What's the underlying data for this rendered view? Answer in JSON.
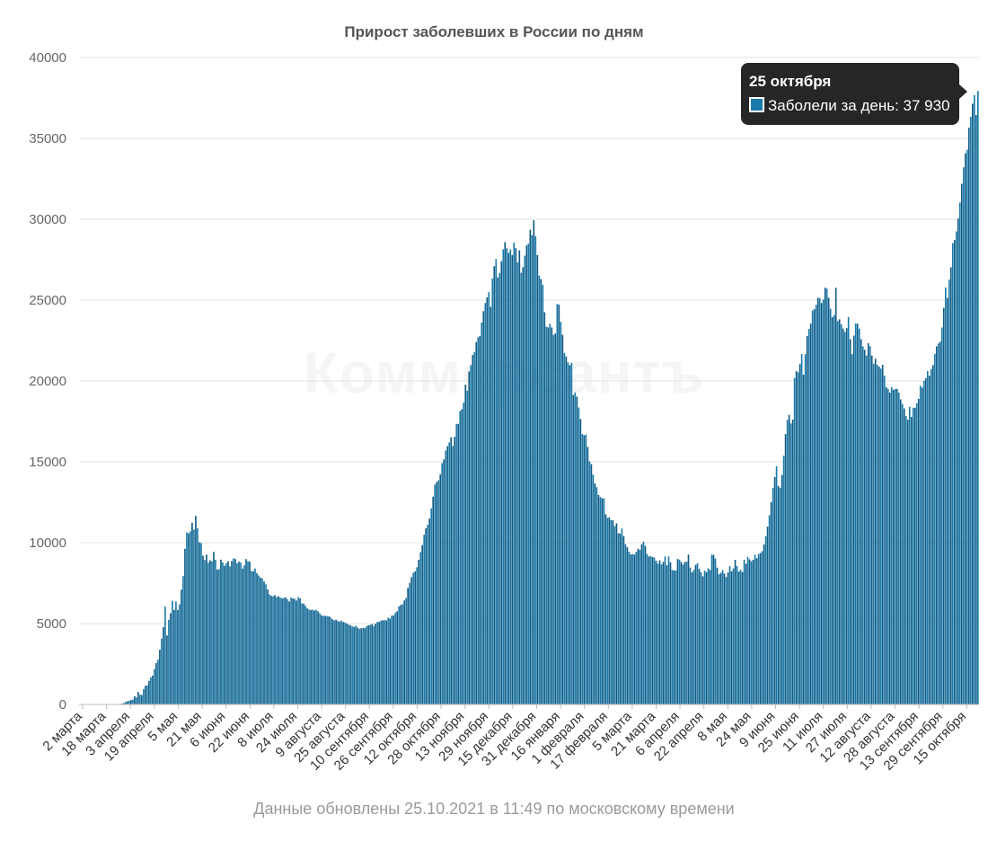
{
  "footer": "Данные обновлены 25.10.2021 в 11:49 по московскому времени",
  "watermark": "Коммерсантъ",
  "tooltip": {
    "date": "25 октября",
    "series_label": "Заболели за день: 37 930"
  },
  "colors": {
    "bar": "#1a7aab",
    "bar_edge": "#0f5a82",
    "grid": "#e3e3e3"
  },
  "chart_data": {
    "type": "bar",
    "title": "Прирост заболевших в России по дням",
    "xlabel": "",
    "ylabel": "",
    "ylim": [
      0,
      40000
    ],
    "yticks": [
      0,
      5000,
      10000,
      15000,
      20000,
      25000,
      30000,
      35000,
      40000
    ],
    "grid": true,
    "legend": "none",
    "x_start": "2020-03-02",
    "x_end": "2021-10-25",
    "x_tick_labels": [
      "2 марта",
      "18 марта",
      "3 апреля",
      "19 апреля",
      "5 мая",
      "21 мая",
      "6 июня",
      "22 июня",
      "8 июля",
      "24 июля",
      "9 августа",
      "25 августа",
      "10 сентября",
      "26 сентября",
      "12 октября",
      "28 октября",
      "13 ноября",
      "29 ноября",
      "15 декабря",
      "31 декабря",
      "16 января",
      "1 февраля",
      "17 февраля",
      "5 марта",
      "21 марта",
      "6 апреля",
      "22 апреля",
      "8 мая",
      "24 мая",
      "9 июня",
      "25 июня",
      "11 июля",
      "27 июля",
      "12 августа",
      "28 августа",
      "13 сентября",
      "29 сентября",
      "15 октября"
    ],
    "series": [
      {
        "values": [
          0,
          0,
          0,
          0,
          0,
          0,
          0,
          0,
          0,
          0,
          0,
          0,
          0,
          0,
          0,
          0,
          0,
          0,
          0,
          0,
          0,
          0,
          22,
          58,
          79,
          158,
          196,
          229,
          270,
          302,
          501,
          440,
          771,
          601,
          582,
          954,
          1154,
          1175,
          1459,
          1667,
          1786,
          2186,
          2558,
          2774,
          3388,
          4070,
          4785,
          6060,
          4268,
          5236,
          5642,
          6411,
          5849,
          6361,
          5841,
          6198,
          7099,
          7933,
          9623,
          10633,
          10581,
          10699,
          11231,
          10817,
          11656,
          10899,
          10028,
          9974,
          9200,
          8926,
          9263,
          8764,
          8915,
          8849,
          9434,
          8946,
          8338,
          8371,
          8952,
          8779,
          8572,
          8726,
          8855,
          8536,
          8863,
          9035,
          8985,
          8726,
          8831,
          8779,
          8404,
          8595,
          8987,
          8858,
          8835,
          8248,
          8246,
          8404,
          8110,
          7972,
          7843,
          7790,
          7600,
          7425,
          7113,
          6800,
          6719,
          6693,
          6760,
          6632,
          6693,
          6611,
          6562,
          6595,
          6615,
          6509,
          6368,
          6611,
          6556,
          6537,
          6428,
          6635,
          6562,
          6248,
          6234,
          6109,
          5940,
          5871,
          5842,
          5862,
          5811,
          5848,
          5759,
          5635,
          5509,
          5475,
          5482,
          5462,
          5448,
          5395,
          5267,
          5204,
          5241,
          5159,
          5118,
          5189,
          5102,
          5065,
          5010,
          4945,
          4892,
          4828,
          4785,
          4870,
          4748,
          4676,
          4711,
          4733,
          4712,
          4829,
          4892,
          4921,
          4969,
          4852,
          4995,
          5110,
          5099,
          5185,
          5196,
          5218,
          5195,
          5363,
          5310,
          5488,
          5509,
          5670,
          5762,
          6065,
          6148,
          6196,
          6431,
          6595,
          7212,
          7523,
          7867,
          8135,
          8232,
          8481,
          8945,
          9412,
          9859,
          10499,
          10888,
          11115,
          11493,
          12126,
          12846,
          13592,
          13754,
          13868,
          14231,
          14922,
          15150,
          15700,
          15971,
          16202,
          16521,
          15982,
          16550,
          17340,
          17347,
          18140,
          18257,
          18665,
          19768,
          19404,
          20582,
          20977,
          21608,
          21798,
          22410,
          22702,
          22778,
          23610,
          24318,
          24822,
          25173,
          25487,
          24581,
          26338,
          27100,
          27543,
          26402,
          26683,
          27403,
          28145,
          28585,
          28209,
          27927,
          28137,
          27787,
          28552,
          28214,
          27328,
          28080,
          26689,
          27039,
          27747,
          28381,
          28486,
          29350,
          29018,
          29935,
          28948,
          27787,
          26513,
          26301,
          25948,
          24246,
          23351,
          23315,
          23541,
          23309,
          22850,
          22934,
          24763,
          24715,
          23652,
          22857,
          21734,
          21513,
          21152,
          20985,
          21127,
          19138,
          19290,
          19032,
          18359,
          17648,
          16714,
          16643,
          16688,
          15916,
          15038,
          14861,
          14207,
          13663,
          13433,
          12953,
          12828,
          12742,
          12742,
          11751,
          11534,
          11571,
          11398,
          11385,
          11024,
          11198,
          10595,
          10565,
          10880,
          10410,
          9908,
          9724,
          9437,
          9284,
          9299,
          9270,
          9445,
          9632,
          9558,
          9908,
          10065,
          9803,
          9303,
          9149,
          9167,
          9114,
          9088,
          8885,
          8704,
          8906,
          8656,
          8807,
          9150,
          8599,
          9149,
          8795,
          8328,
          8277,
          8294,
          8995,
          8951,
          8804,
          8646,
          8803,
          8835,
          9269,
          8464,
          8173,
          8321,
          8632,
          8731,
          8380,
          8173,
          7920,
          8271,
          8183,
          8419,
          8320,
          9270,
          9252,
          9019,
          8457,
          8050,
          8139,
          8312,
          8094,
          7877,
          8162,
          8554,
          8233,
          8407,
          8944,
          8553,
          8217,
          8329,
          8187,
          8946,
          8694,
          9121,
          8967,
          8848,
          8947,
          9262,
          9038,
          9301,
          9358,
          9475,
          9895,
          10407,
          10997,
          11699,
          12505,
          13397,
          14057,
          14723,
          13510,
          13397,
          14185,
          15382,
          16715,
          17594,
          17906,
          17378,
          17611,
          20182,
          20616,
          20538,
          21042,
          21665,
          20393,
          21650,
          22778,
          23218,
          23543,
          24353,
          24439,
          24702,
          25142,
          25116,
          24818,
          25033,
          25766,
          25704,
          25140,
          24471,
          23947,
          24072,
          25766,
          23704,
          23811,
          23508,
          23239,
          23032,
          23270,
          23947,
          22589,
          21650,
          22804,
          23564,
          23541,
          23239,
          22589,
          22144,
          21932,
          21571,
          22336,
          22144,
          21571,
          21058,
          21378,
          21000,
          20890,
          20765,
          21000,
          20329,
          19619,
          19509,
          19286,
          19630,
          19454,
          19509,
          19509,
          19286,
          18863,
          18578,
          18300,
          17837,
          17600,
          18400,
          17780,
          18345,
          18341,
          18637,
          18900,
          19706,
          19594,
          20014,
          20174,
          20616,
          20329,
          20742,
          20985,
          21681,
          22144,
          22316,
          22430,
          23307,
          24522,
          25781,
          25133,
          26266,
          27031,
          28523,
          28717,
          29251,
          30049,
          31038,
          32196,
          33208,
          34073,
          34303,
          35660,
          36339,
          37141,
          37678,
          36446,
          37930
        ]
      }
    ]
  }
}
